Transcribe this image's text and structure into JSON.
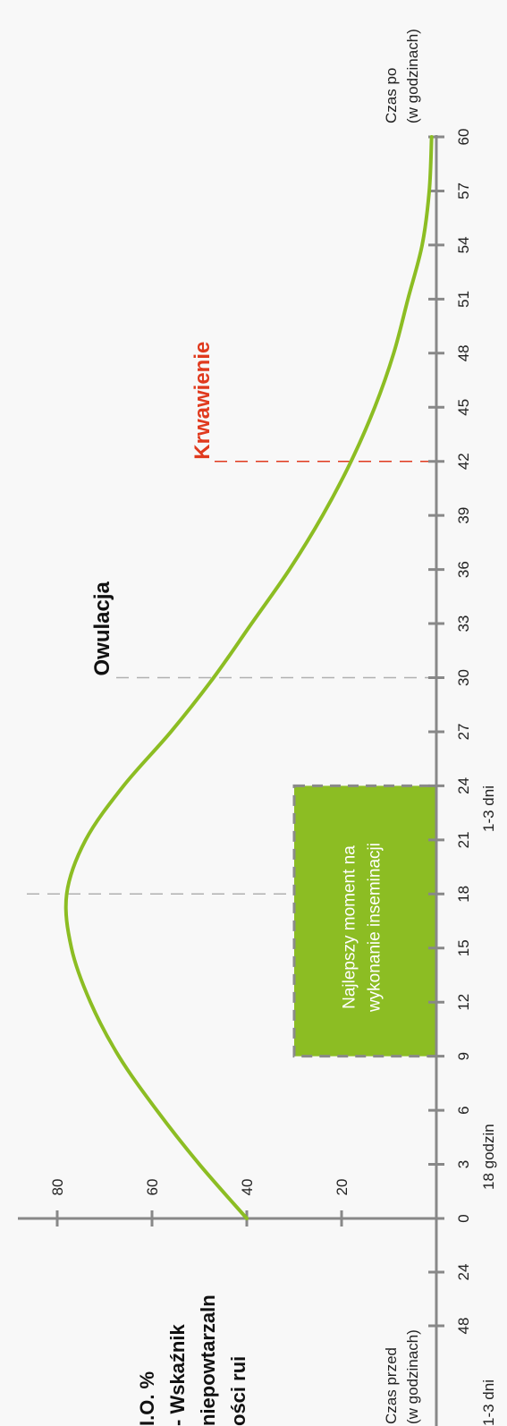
{
  "chart_data": {
    "type": "line",
    "orientation": "rotated-90",
    "y_axis": {
      "label_lines": [
        "I.O. %",
        "- Wskaźnik",
        "niepowtarzaln",
        "ości rui"
      ],
      "ticks": [
        20,
        40,
        60,
        80
      ]
    },
    "x_axis": {
      "after_ticks": [
        0,
        3,
        6,
        9,
        12,
        15,
        18,
        21,
        24,
        27,
        30,
        33,
        36,
        39,
        42,
        45,
        48,
        51,
        54,
        57,
        60
      ],
      "before_ticks": [
        24,
        48
      ],
      "after_label_lines": [
        "Czas po",
        "(w godzinach)"
      ],
      "before_label_lines": [
        "Czas przed",
        "(w godzinach)"
      ],
      "period_notes": [
        "18 godzin",
        "1-3 dni",
        "1-3 dni"
      ]
    },
    "series": [
      {
        "color": "#8cbd23",
        "points": [
          {
            "x": 0,
            "y": 40
          },
          {
            "x": 3,
            "y": 50
          },
          {
            "x": 6,
            "y": 59
          },
          {
            "x": 9,
            "y": 67
          },
          {
            "x": 12,
            "y": 73
          },
          {
            "x": 15,
            "y": 77
          },
          {
            "x": 18,
            "y": 78
          },
          {
            "x": 21,
            "y": 74
          },
          {
            "x": 24,
            "y": 66
          },
          {
            "x": 27,
            "y": 56
          },
          {
            "x": 30,
            "y": 47
          },
          {
            "x": 33,
            "y": 39
          },
          {
            "x": 36,
            "y": 31
          },
          {
            "x": 39,
            "y": 24
          },
          {
            "x": 42,
            "y": 18
          },
          {
            "x": 45,
            "y": 13
          },
          {
            "x": 48,
            "y": 9
          },
          {
            "x": 51,
            "y": 6
          },
          {
            "x": 54,
            "y": 3
          },
          {
            "x": 57,
            "y": 1.5
          },
          {
            "x": 60,
            "y": 1
          }
        ]
      }
    ],
    "annotations": [
      {
        "text": "Owulacja",
        "x": 30,
        "color": "#111111"
      },
      {
        "text": "Krwawienie",
        "x": 42,
        "color": "#e03a1e"
      }
    ],
    "peak_marker_x": 18,
    "best_window": {
      "x_start": 9,
      "x_end": 24,
      "y_top": 30,
      "text_lines": [
        "Najlepszy moment na",
        "wykonanie inseminacji"
      ],
      "color": "#8cbd23"
    }
  }
}
